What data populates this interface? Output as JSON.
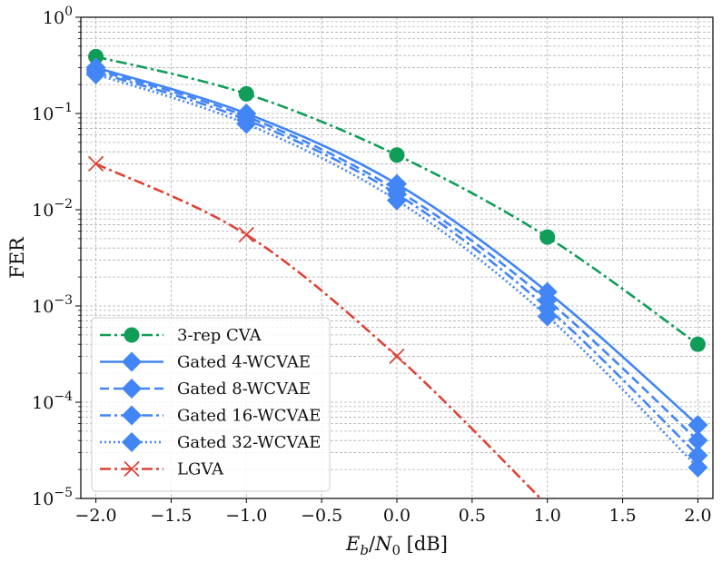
{
  "chart_data": {
    "type": "line",
    "xlabel": "E_b/N_0 [dB]",
    "ylabel": "FER",
    "xlim": [
      -2.1,
      2.1
    ],
    "ylim": [
      1e-05,
      1
    ],
    "yscale": "log",
    "grid": true,
    "legend_position": "bottom-left",
    "x_ticks": [
      "−2.0",
      "−1.5",
      "−1.0",
      "−0.5",
      "0.0",
      "0.5",
      "1.0",
      "1.5",
      "2.0"
    ],
    "y_ticks": [
      {
        "base": "10",
        "exp": "0"
      },
      {
        "base": "10",
        "exp": "−1"
      },
      {
        "base": "10",
        "exp": "−2"
      },
      {
        "base": "10",
        "exp": "−3"
      },
      {
        "base": "10",
        "exp": "−4"
      },
      {
        "base": "10",
        "exp": "−5"
      }
    ],
    "series": [
      {
        "name": "3-rep CVA",
        "color": "#0f9d58",
        "dash": "dashdot",
        "marker": "circle",
        "x": [
          -2,
          -1,
          0,
          1,
          2
        ],
        "y": [
          0.39,
          0.16,
          0.037,
          0.0052,
          0.0004
        ]
      },
      {
        "name": "Gated 4-WCVAE",
        "color": "#4285f4",
        "dash": "solid",
        "marker": "diamond",
        "x": [
          -2,
          -1,
          0,
          1,
          2
        ],
        "y": [
          0.3,
          0.1,
          0.0185,
          0.0014,
          5.8e-05
        ]
      },
      {
        "name": "Gated 8-WCVAE",
        "color": "#4285f4",
        "dash": "dashed",
        "marker": "diamond",
        "x": [
          -2,
          -1,
          0,
          1,
          2
        ],
        "y": [
          0.285,
          0.093,
          0.016,
          0.00115,
          4e-05
        ]
      },
      {
        "name": "Gated 16-WCVAE",
        "color": "#4285f4",
        "dash": "dashdot",
        "marker": "diamond",
        "x": [
          -2,
          -1,
          0,
          1,
          2
        ],
        "y": [
          0.27,
          0.086,
          0.0145,
          0.00095,
          2.8e-05
        ]
      },
      {
        "name": "Gated 32-WCVAE",
        "color": "#4285f4",
        "dash": "dotted",
        "marker": "diamond",
        "x": [
          -2,
          -1,
          0,
          1,
          2
        ],
        "y": [
          0.255,
          0.078,
          0.0125,
          0.00078,
          2.1e-05
        ]
      },
      {
        "name": "LGVA",
        "color": "#db4437",
        "dash": "dashdot",
        "marker": "x",
        "x": [
          -2,
          -1,
          0,
          1
        ],
        "y": [
          0.03,
          0.0055,
          0.0003,
          8.5e-06
        ]
      }
    ]
  }
}
